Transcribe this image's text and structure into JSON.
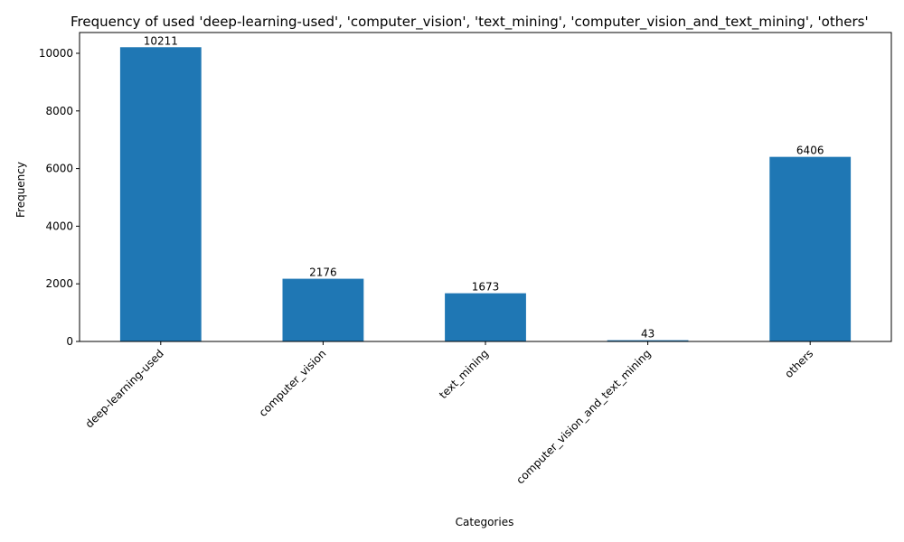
{
  "chart_data": {
    "type": "bar",
    "title": "Frequency of used 'deep-learning-used', 'computer_vision', 'text_mining', 'computer_vision_and_text_mining', 'others'",
    "xlabel": "Categories",
    "ylabel": "Frequency",
    "categories": [
      "deep-learning-used",
      "computer_vision",
      "text_mining",
      "computer_vision_and_text_mining",
      "others"
    ],
    "values": [
      10211,
      2176,
      1673,
      43,
      6406
    ],
    "ylim": [
      0,
      10721
    ],
    "yticks": [
      0,
      2000,
      4000,
      6000,
      8000,
      10000
    ],
    "bar_color": "#1f77b4",
    "grid": false,
    "legend": "none"
  }
}
